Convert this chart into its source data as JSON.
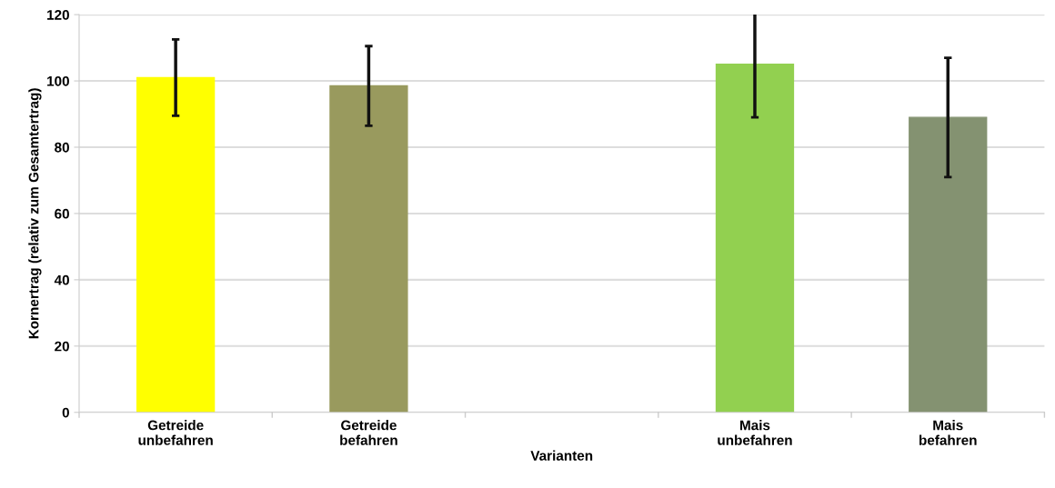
{
  "chart_data": {
    "type": "bar",
    "xlabel": "Varianten",
    "ylabel": "Kornertrag (relativ zum Gesamtertrag)",
    "categories": [
      "Getreide\nunbefahren",
      "Getreide\nbefahren",
      null,
      "Mais\nunbefahren",
      "Mais\nbefahren"
    ],
    "values": [
      101,
      98.5,
      null,
      105,
      89
    ],
    "errors": [
      11.5,
      12,
      null,
      16,
      18
    ],
    "colors": [
      "#ffff00",
      "#999a5e",
      "#ffffff",
      "#92d050",
      "#849271"
    ],
    "ylim": [
      0,
      120
    ],
    "yticks": [
      0,
      20,
      40,
      60,
      80,
      100,
      120
    ],
    "grid": "y"
  }
}
